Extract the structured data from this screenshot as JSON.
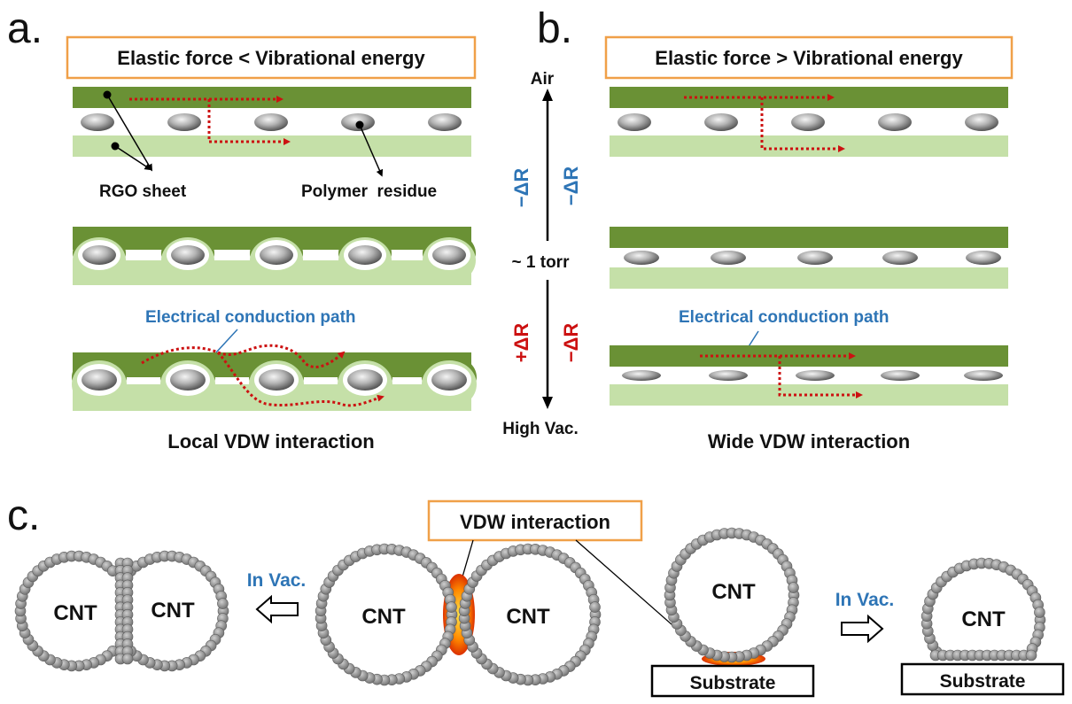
{
  "panel_a": {
    "letter": "a.",
    "title": "Elastic force < Vibrational energy",
    "rgo_label": "RGO sheet",
    "polymer_label": "Polymer  residue",
    "conduction_label": "Electrical conduction path",
    "caption": "Local VDW interaction"
  },
  "panel_b": {
    "letter": "b.",
    "title": "Elastic force > Vibrational energy",
    "conduction_label": "Electrical conduction path",
    "caption": "Wide VDW interaction"
  },
  "pressure_axis": {
    "top": "Air",
    "middle": "~ 1 torr",
    "bottom": "High Vac.",
    "upper_left_sign": "−ΔR",
    "upper_right_sign": "−ΔR",
    "lower_left_sign": "+ΔR",
    "lower_right_sign": "−ΔR"
  },
  "panel_c": {
    "letter": "c.",
    "vdw_label": "VDW interaction",
    "in_vac_left": "In Vac.",
    "in_vac_right": "In Vac.",
    "cnt_label": "CNT",
    "substrate_label": "Substrate"
  },
  "colors": {
    "rgo_dark": "#6a9135",
    "rgo_light": "#c5e0a8",
    "callout_border": "#f0a048",
    "path_red": "#cc1111",
    "text_blue": "#2e75b6",
    "cnt_gray": "#8f8f8f",
    "vdw_hot": "#ff6a00"
  }
}
